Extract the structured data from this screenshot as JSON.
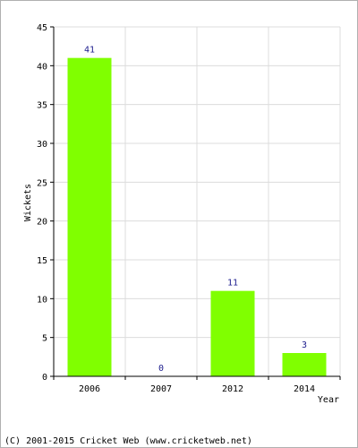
{
  "chart_data": {
    "type": "bar",
    "categories": [
      "2006",
      "2007",
      "2012",
      "2014"
    ],
    "values": [
      41,
      0,
      11,
      3
    ],
    "data_labels": [
      "41",
      "0",
      "11",
      "3"
    ],
    "title": "",
    "xlabel": "Year",
    "ylabel": "Wickets",
    "ylim": [
      0,
      45
    ],
    "yticks": [
      0,
      5,
      10,
      15,
      20,
      25,
      30,
      35,
      40,
      45
    ],
    "grid": true,
    "bar_color": "#80ff00"
  },
  "footer": {
    "copyright": "(C) 2001-2015 Cricket Web (www.cricketweb.net)"
  }
}
